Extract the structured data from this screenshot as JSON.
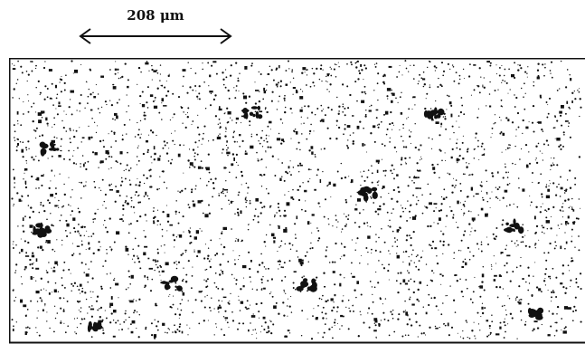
{
  "scale_bar": {
    "label": "208 μm"
  },
  "figure": {
    "border_color": "#111111",
    "background_color": "#ffffff",
    "particle_color": "#111111"
  }
}
